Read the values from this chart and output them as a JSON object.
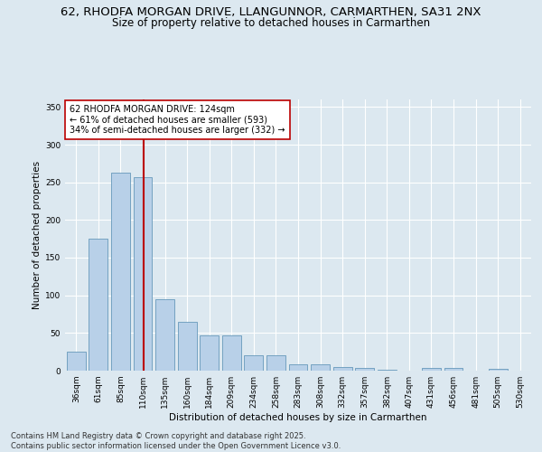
{
  "title_line1": "62, RHODFA MORGAN DRIVE, LLANGUNNOR, CARMARTHEN, SA31 2NX",
  "title_line2": "Size of property relative to detached houses in Carmarthen",
  "xlabel": "Distribution of detached houses by size in Carmarthen",
  "ylabel": "Number of detached properties",
  "categories": [
    "36sqm",
    "61sqm",
    "85sqm",
    "110sqm",
    "135sqm",
    "160sqm",
    "184sqm",
    "209sqm",
    "234sqm",
    "258sqm",
    "283sqm",
    "308sqm",
    "332sqm",
    "357sqm",
    "382sqm",
    "407sqm",
    "431sqm",
    "456sqm",
    "481sqm",
    "505sqm",
    "530sqm"
  ],
  "values": [
    25,
    175,
    263,
    257,
    95,
    65,
    47,
    47,
    20,
    20,
    9,
    8,
    5,
    4,
    1,
    0,
    4,
    4,
    0,
    3,
    0
  ],
  "bar_color": "#b8d0e8",
  "bar_edge_color": "#6699bb",
  "vline_color": "#bb0000",
  "vline_pos": 3.056,
  "annotation_line1": "62 RHODFA MORGAN DRIVE: 124sqm",
  "annotation_line2": "← 61% of detached houses are smaller (593)",
  "annotation_line3": "34% of semi-detached houses are larger (332) →",
  "annotation_box_facecolor": "#ffffff",
  "annotation_box_edgecolor": "#bb0000",
  "ylim": [
    0,
    360
  ],
  "yticks": [
    0,
    50,
    100,
    150,
    200,
    250,
    300,
    350
  ],
  "background_color": "#dce8f0",
  "axes_facecolor": "#dce8f0",
  "grid_color": "#ffffff",
  "title1_fontsize": 9.5,
  "title2_fontsize": 8.5,
  "tick_fontsize": 6.5,
  "ylabel_fontsize": 7.5,
  "xlabel_fontsize": 7.5,
  "annotation_fontsize": 7,
  "footer_fontsize": 6,
  "footer_line1": "Contains HM Land Registry data © Crown copyright and database right 2025.",
  "footer_line2": "Contains public sector information licensed under the Open Government Licence v3.0."
}
